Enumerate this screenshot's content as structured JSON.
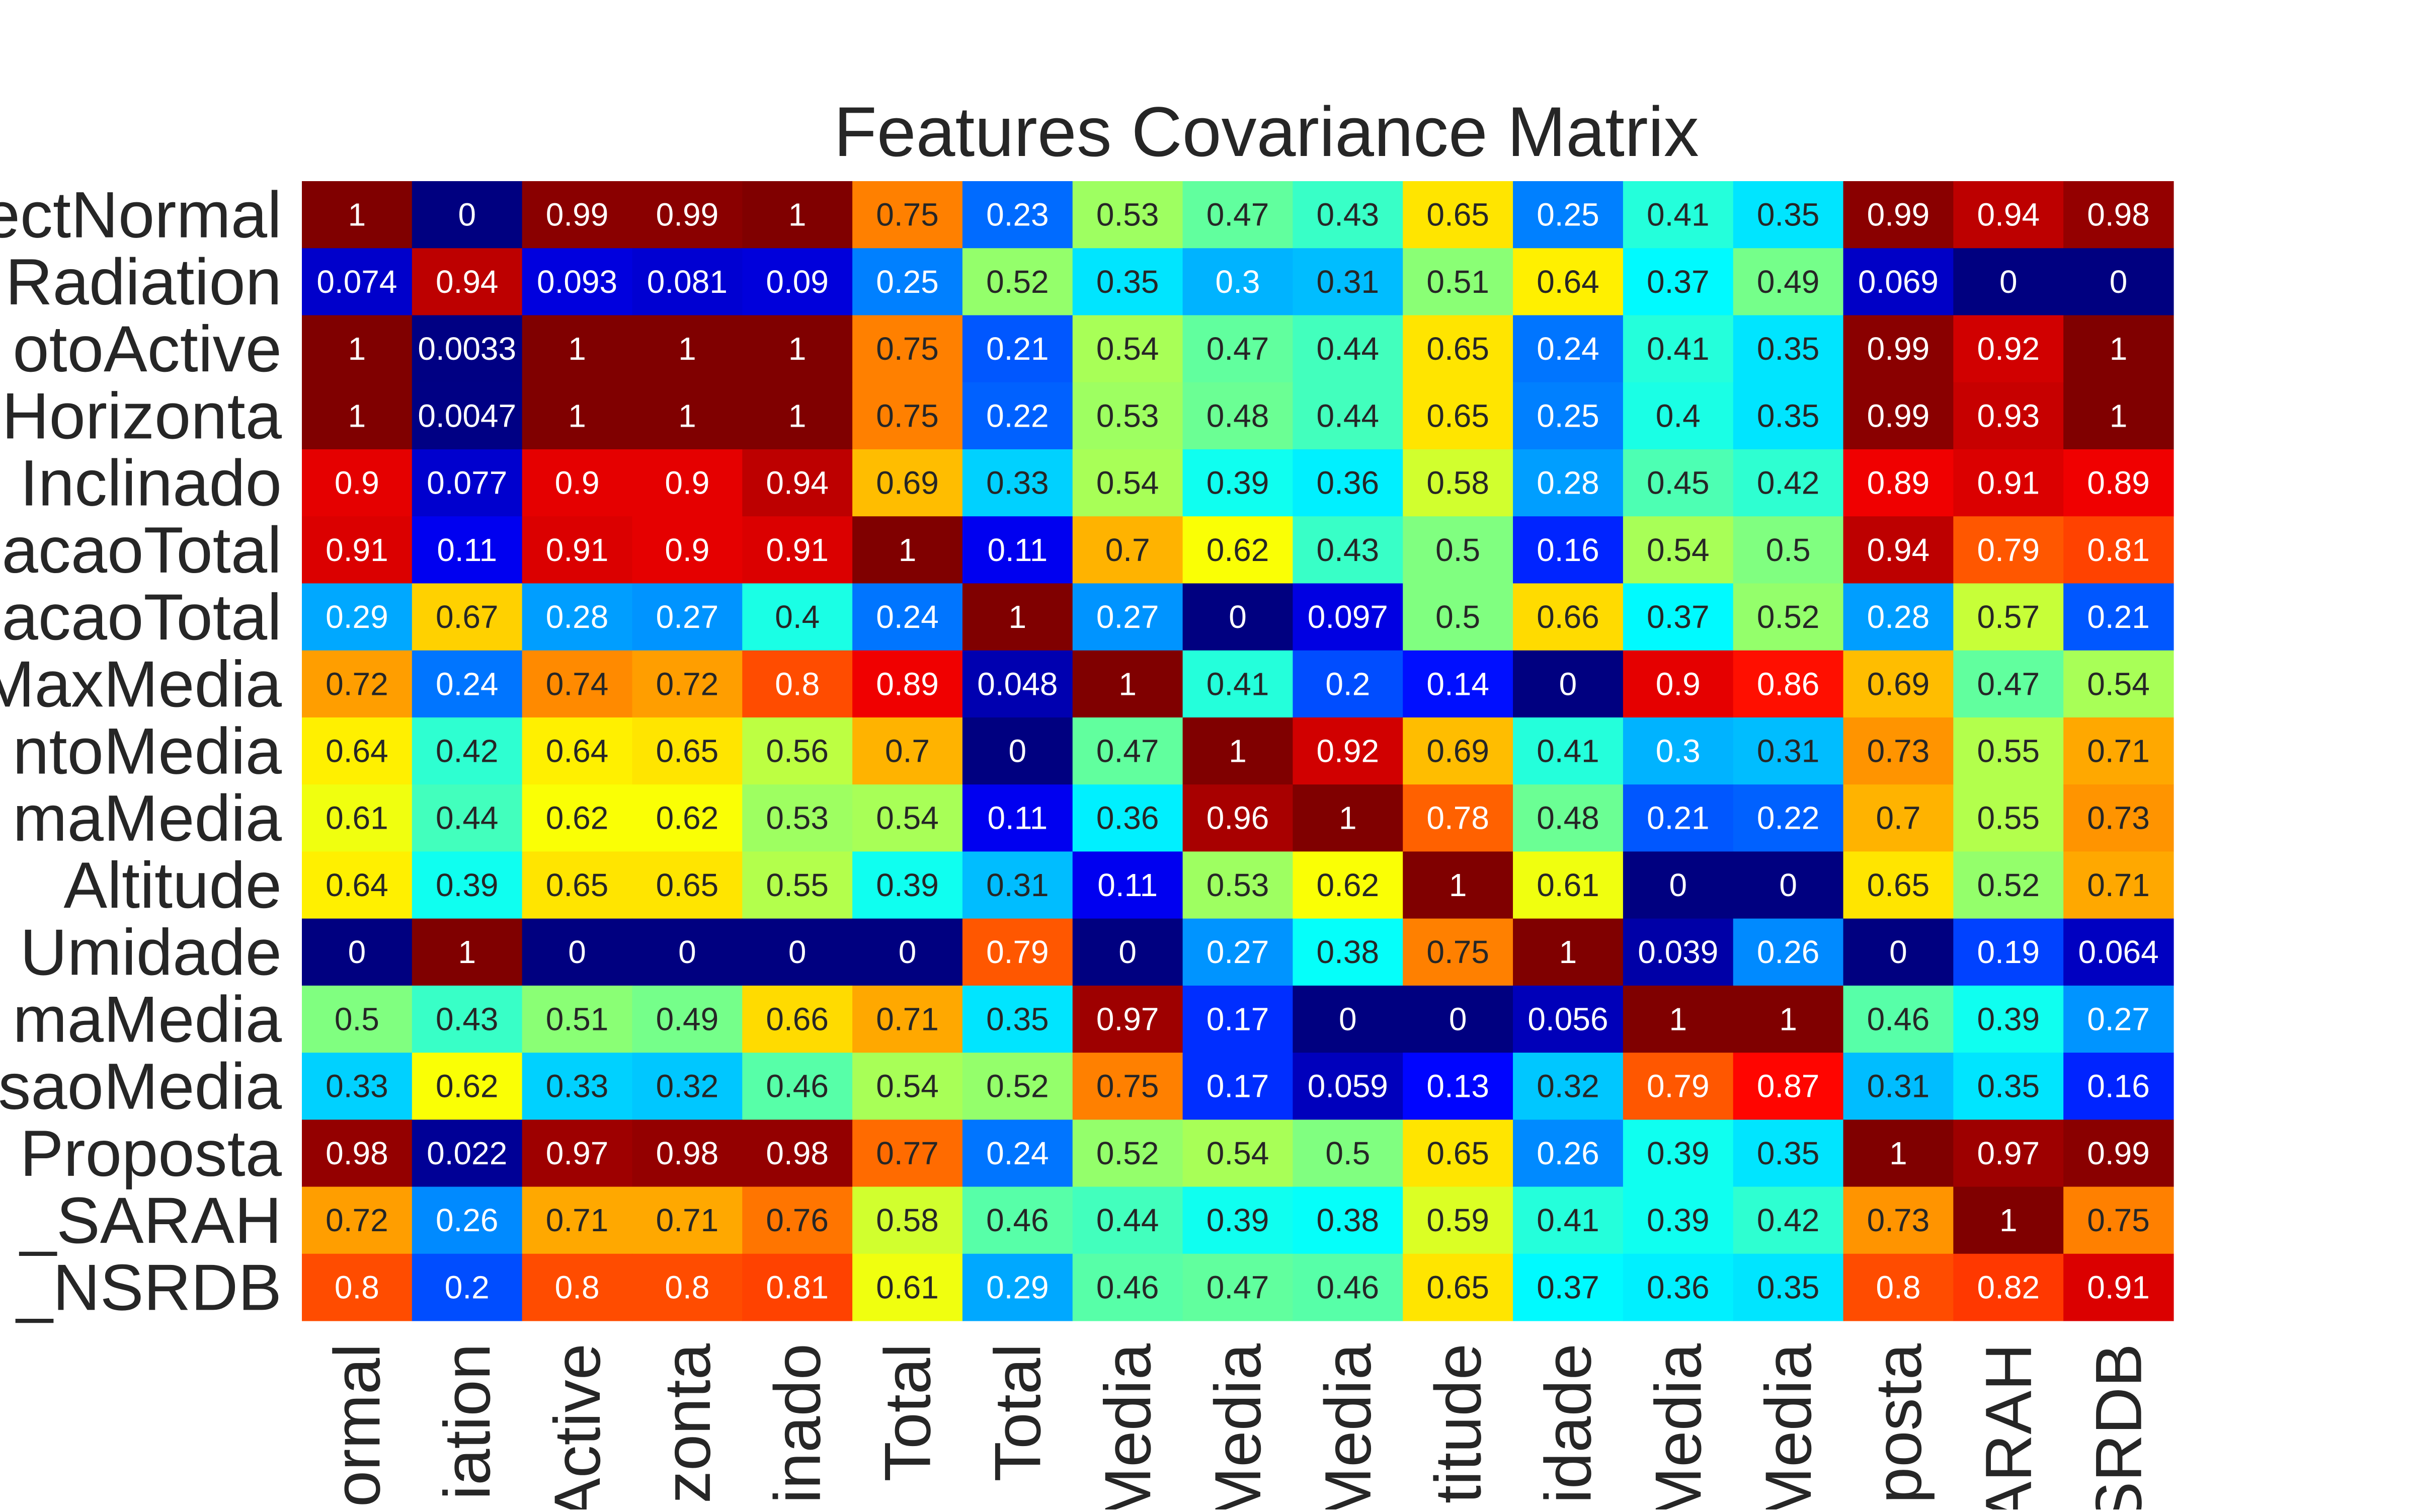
{
  "chart_data": {
    "type": "heatmap",
    "title": "Features Covariance Matrix",
    "colormap": "jet",
    "value_range": [
      0,
      1
    ],
    "row_labels": [
      "ectNormal",
      "Radiation",
      "otoActive",
      "Horizonta",
      "Inclinado",
      "acaoTotal",
      "acaoTotal",
      "MaxMedia",
      "ntoMedia",
      "maMedia",
      "Altitude",
      "Umidade",
      "maMedia",
      "saoMedia",
      "Proposta",
      "_SARAH",
      "_NSRDB"
    ],
    "col_labels": [
      "ormal",
      "iation",
      "Active",
      "zonta",
      "inado",
      "Total",
      "Total",
      "Media",
      "Media",
      "Media",
      "titude",
      "idade",
      "Media",
      "Media",
      "posta",
      "ARAH",
      "SRDB"
    ],
    "cells": [
      [
        "1",
        "0",
        "0.99",
        "0.99",
        "1",
        "0.75",
        "0.23",
        "0.53",
        "0.47",
        "0.43",
        "0.65",
        "0.25",
        "0.41",
        "0.35",
        "0.99",
        "0.94",
        "0.98"
      ],
      [
        "0.074",
        "0.94",
        "0.093",
        "0.081",
        "0.09",
        "0.25",
        "0.52",
        "0.35",
        "0.3",
        "0.31",
        "0.51",
        "0.64",
        "0.37",
        "0.49",
        "0.069",
        "0",
        "0"
      ],
      [
        "1",
        "0.0033",
        "1",
        "1",
        "1",
        "0.75",
        "0.21",
        "0.54",
        "0.47",
        "0.44",
        "0.65",
        "0.24",
        "0.41",
        "0.35",
        "0.99",
        "0.92",
        "1"
      ],
      [
        "1",
        "0.0047",
        "1",
        "1",
        "1",
        "0.75",
        "0.22",
        "0.53",
        "0.48",
        "0.44",
        "0.65",
        "0.25",
        "0.4",
        "0.35",
        "0.99",
        "0.93",
        "1"
      ],
      [
        "0.9",
        "0.077",
        "0.9",
        "0.9",
        "0.94",
        "0.69",
        "0.33",
        "0.54",
        "0.39",
        "0.36",
        "0.58",
        "0.28",
        "0.45",
        "0.42",
        "0.89",
        "0.91",
        "0.89"
      ],
      [
        "0.91",
        "0.11",
        "0.91",
        "0.9",
        "0.91",
        "1",
        "0.11",
        "0.7",
        "0.62",
        "0.43",
        "0.5",
        "0.16",
        "0.54",
        "0.5",
        "0.94",
        "0.79",
        "0.81"
      ],
      [
        "0.29",
        "0.67",
        "0.28",
        "0.27",
        "0.4",
        "0.24",
        "1",
        "0.27",
        "0",
        "0.097",
        "0.5",
        "0.66",
        "0.37",
        "0.52",
        "0.28",
        "0.57",
        "0.21"
      ],
      [
        "0.72",
        "0.24",
        "0.74",
        "0.72",
        "0.8",
        "0.89",
        "0.048",
        "1",
        "0.41",
        "0.2",
        "0.14",
        "0",
        "0.9",
        "0.86",
        "0.69",
        "0.47",
        "0.54"
      ],
      [
        "0.64",
        "0.42",
        "0.64",
        "0.65",
        "0.56",
        "0.7",
        "0",
        "0.47",
        "1",
        "0.92",
        "0.69",
        "0.41",
        "0.3",
        "0.31",
        "0.73",
        "0.55",
        "0.71"
      ],
      [
        "0.61",
        "0.44",
        "0.62",
        "0.62",
        "0.53",
        "0.54",
        "0.11",
        "0.36",
        "0.96",
        "1",
        "0.78",
        "0.48",
        "0.21",
        "0.22",
        "0.7",
        "0.55",
        "0.73"
      ],
      [
        "0.64",
        "0.39",
        "0.65",
        "0.65",
        "0.55",
        "0.39",
        "0.31",
        "0.11",
        "0.53",
        "0.62",
        "1",
        "0.61",
        "0",
        "0",
        "0.65",
        "0.52",
        "0.71"
      ],
      [
        "0",
        "1",
        "0",
        "0",
        "0",
        "0",
        "0.79",
        "0",
        "0.27",
        "0.38",
        "0.75",
        "1",
        "0.039",
        "0.26",
        "0",
        "0.19",
        "0.064"
      ],
      [
        "0.5",
        "0.43",
        "0.51",
        "0.49",
        "0.66",
        "0.71",
        "0.35",
        "0.97",
        "0.17",
        "0",
        "0",
        "0.056",
        "1",
        "1",
        "0.46",
        "0.39",
        "0.27"
      ],
      [
        "0.33",
        "0.62",
        "0.33",
        "0.32",
        "0.46",
        "0.54",
        "0.52",
        "0.75",
        "0.17",
        "0.059",
        "0.13",
        "0.32",
        "0.79",
        "0.87",
        "0.31",
        "0.35",
        "0.16"
      ],
      [
        "0.98",
        "0.022",
        "0.97",
        "0.98",
        "0.98",
        "0.77",
        "0.24",
        "0.52",
        "0.54",
        "0.5",
        "0.65",
        "0.26",
        "0.39",
        "0.35",
        "1",
        "0.97",
        "0.99"
      ],
      [
        "0.72",
        "0.26",
        "0.71",
        "0.71",
        "0.76",
        "0.58",
        "0.46",
        "0.44",
        "0.39",
        "0.38",
        "0.59",
        "0.41",
        "0.39",
        "0.42",
        "0.73",
        "1",
        "0.75"
      ],
      [
        "0.8",
        "0.2",
        "0.8",
        "0.8",
        "0.81",
        "0.61",
        "0.29",
        "0.46",
        "0.47",
        "0.46",
        "0.65",
        "0.37",
        "0.36",
        "0.35",
        "0.8",
        "0.82",
        "0.91"
      ]
    ]
  }
}
